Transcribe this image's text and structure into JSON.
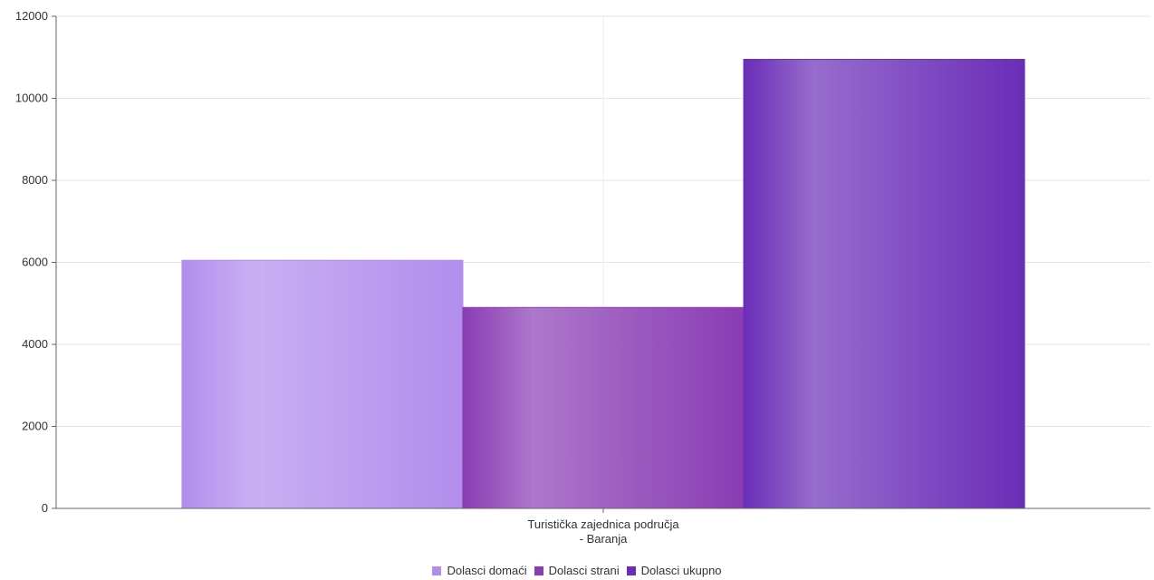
{
  "chart_data": {
    "type": "bar",
    "categories": [
      "Turistička zajednica područja - Baranja"
    ],
    "category_label_lines": [
      "Turistička zajednica područja",
      "- Baranja"
    ],
    "series": [
      {
        "name": "Dolasci domaći",
        "values": [
          6050
        ],
        "color": "#b28ded"
      },
      {
        "name": "Dolasci strani",
        "values": [
          4900
        ],
        "color": "#8a3cb4"
      },
      {
        "name": "Dolasci ukupno",
        "values": [
          10950
        ],
        "color": "#6a2db8"
      }
    ],
    "ylim": [
      0,
      12000
    ],
    "y_ticks": [
      0,
      2000,
      4000,
      6000,
      8000,
      10000,
      12000
    ],
    "y_tick_labels": [
      "0",
      "2000",
      "4000",
      "6000",
      "8000",
      "10000",
      "12000"
    ],
    "grid": true,
    "legend_position": "bottom-center",
    "title": "",
    "xlabel": "",
    "ylabel": ""
  }
}
